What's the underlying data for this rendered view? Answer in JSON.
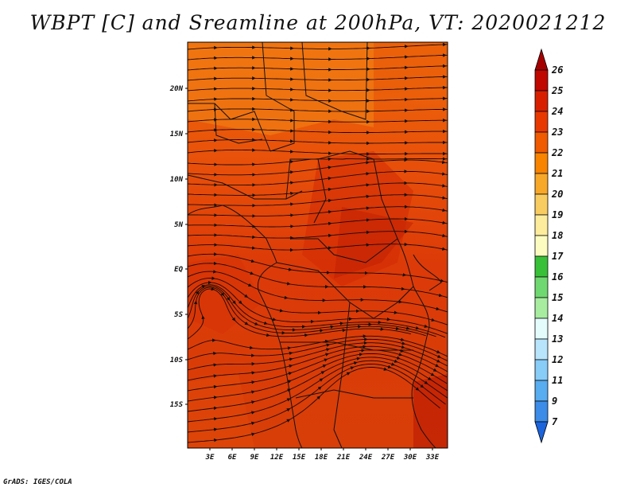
{
  "title": "WBPT [C] and Sreamline at 200hPa, VT: 2020021212",
  "footer": "GrADS: IGES/COLA",
  "map": {
    "field": "WBPT [C]",
    "overlay": "Sreamline",
    "level": "200hPa",
    "valid_time": "2020021212",
    "lat_labels": [
      "20N",
      "15N",
      "10N",
      "5N",
      "EQ",
      "5S",
      "10S",
      "15S"
    ],
    "lon_labels": [
      "3E",
      "6E",
      "9E",
      "12E",
      "15E",
      "18E",
      "21E",
      "24E",
      "27E",
      "30E",
      "33E"
    ]
  },
  "colorbar": {
    "levels": [
      "26",
      "25",
      "24",
      "23",
      "22",
      "21",
      "20",
      "19",
      "18",
      "17",
      "16",
      "15",
      "14",
      "13",
      "12",
      "11",
      "9",
      "7"
    ],
    "colors": [
      "#a50000",
      "#c00800",
      "#d82000",
      "#e83800",
      "#f05a00",
      "#f88400",
      "#f8a828",
      "#f8cc60",
      "#fcec9c",
      "#fcfcc0",
      "#38c038",
      "#70d870",
      "#a8eca0",
      "#e4fcfc",
      "#b8e4fc",
      "#88ccf8",
      "#58acf0",
      "#3c8ce8",
      "#1c64dc"
    ]
  }
}
